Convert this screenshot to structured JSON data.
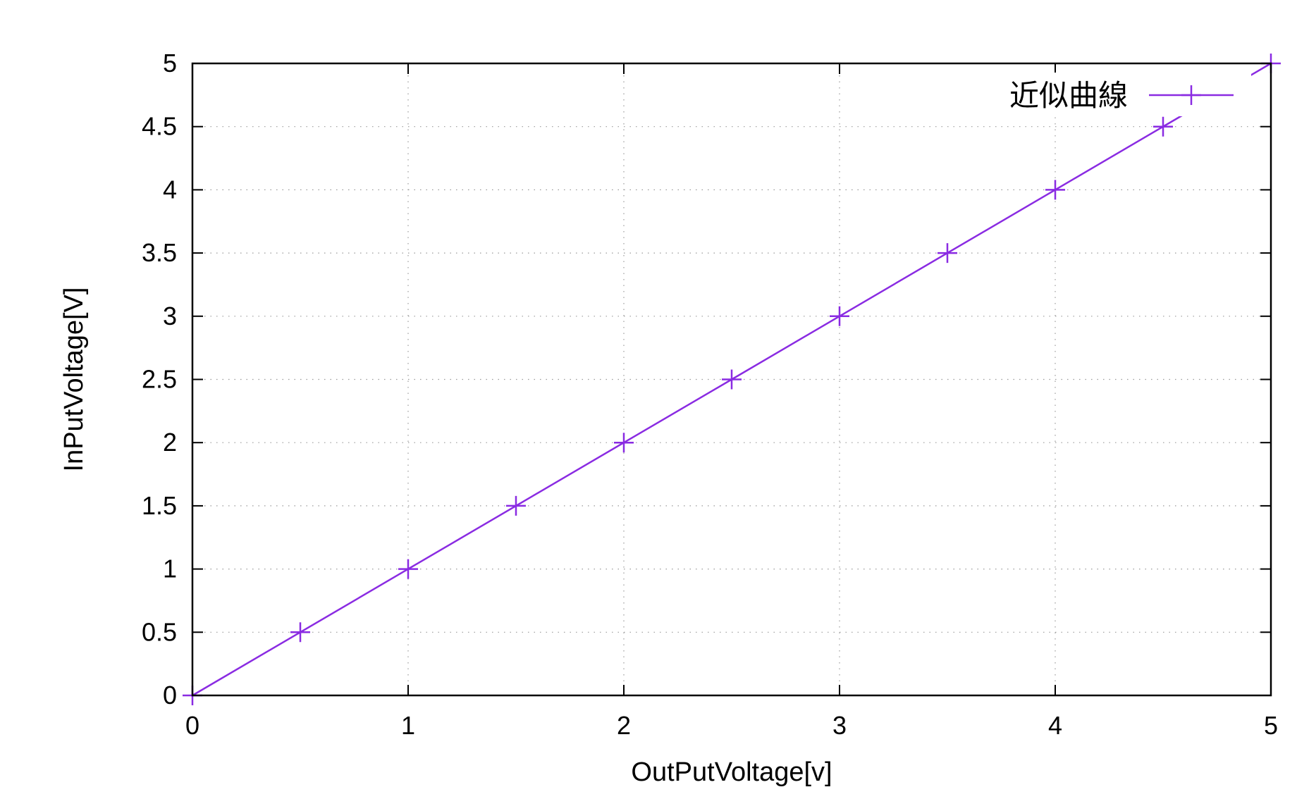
{
  "chart_data": {
    "type": "line",
    "xlabel": "OutPutVoltage[v]",
    "ylabel": "InPutVoltage[V]",
    "xlim": [
      0,
      5
    ],
    "ylim": [
      0,
      5
    ],
    "x_ticks": [
      "0",
      "1",
      "2",
      "3",
      "4",
      "5"
    ],
    "y_ticks": [
      "0",
      "0.5",
      "1",
      "1.5",
      "2",
      "2.5",
      "3",
      "3.5",
      "4",
      "4.5",
      "5"
    ],
    "grid": true,
    "legend_position": "top-right",
    "series": [
      {
        "name": "近似曲線",
        "color": "#8a2be2",
        "marker": "plus",
        "points": [
          {
            "x": 0,
            "y": 0
          },
          {
            "x": 0.5,
            "y": 0.5
          },
          {
            "x": 1,
            "y": 1
          },
          {
            "x": 1.5,
            "y": 1.5
          },
          {
            "x": 2,
            "y": 2
          },
          {
            "x": 2.5,
            "y": 2.5
          },
          {
            "x": 3,
            "y": 3
          },
          {
            "x": 3.5,
            "y": 3.5
          },
          {
            "x": 4,
            "y": 4
          },
          {
            "x": 4.5,
            "y": 4.5
          },
          {
            "x": 5,
            "y": 5
          }
        ]
      }
    ]
  }
}
